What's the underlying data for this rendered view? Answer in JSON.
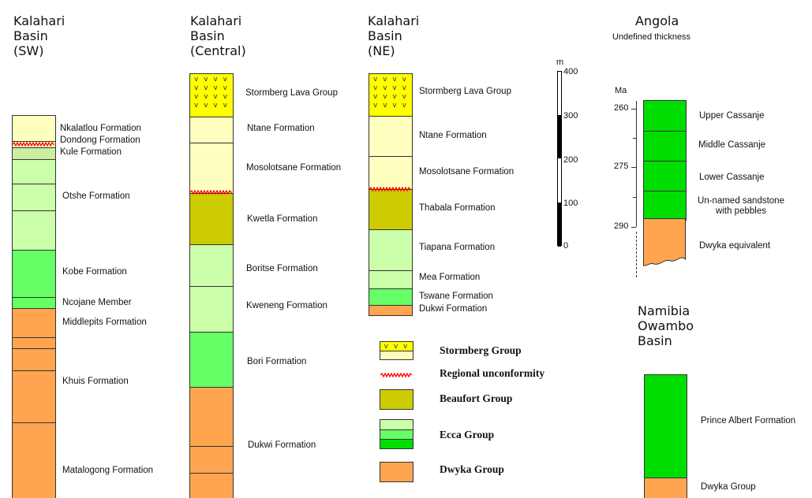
{
  "columns": {
    "sw": {
      "title": [
        "Kalahari",
        "Basin",
        "(SW)"
      ],
      "formations": [
        "Nkalatlou Formation",
        "Dondong Formation",
        "Kule Formation",
        "Otshe Formation",
        "Kobe Formation",
        "Ncojane Member",
        "Middlepits Formation",
        "Khuis Formation",
        "Matalogong Formation"
      ]
    },
    "central": {
      "title": [
        "Kalahari",
        "Basin",
        "(Central)"
      ],
      "formations": [
        "Stormberg Lava Group",
        "Ntane Formation",
        "Mosolotsane Formation",
        "Kwetla Formation",
        "Boritse Formation",
        "Kweneng Formation",
        "Bori Formation",
        "Dukwi Formation"
      ]
    },
    "ne": {
      "title": [
        "Kalahari",
        "Basin",
        "(NE)"
      ],
      "formations": [
        "Stormberg Lava Group",
        "Ntane Formation",
        "Mosolotsane Formation",
        "Thabala Formation",
        "Tiapana Formation",
        "Mea Formation",
        "Tswane Formation",
        "Dukwi Formation"
      ]
    },
    "angola": {
      "title": "Angola",
      "subtitle": "Undefined thickness",
      "axis_label": "Ma",
      "ticks": [
        "260",
        "275",
        "290"
      ],
      "formations": [
        "Upper Cassanje",
        "Middle Cassanje",
        "Lower Cassanje",
        "Un-named sandstone",
        "with pebbles",
        "Dwyka equivalent"
      ]
    },
    "namibia": {
      "title": [
        "Namibia",
        "Owambo",
        "Basin"
      ],
      "formations": [
        "Prince Albert Formation",
        "Dwyka Group"
      ]
    }
  },
  "scale": {
    "unit": "m",
    "ticks": [
      "400",
      "300",
      "200",
      "100",
      "0"
    ]
  },
  "lava_pattern": "v v v v",
  "legend": [
    "Stormberg Group",
    "Regional unconformity",
    "Beaufort Group",
    "Ecca Group",
    "Dwyka Group"
  ],
  "colors": {
    "stormberg_lava": "#ffff00",
    "stormberg_sediment": "#ffffc0",
    "beaufort": "#cccc00",
    "ecca_light": "#ccffaa",
    "ecca_mid": "#66ff66",
    "ecca_dark": "#00dd00",
    "dwyka": "#ffa54f",
    "unconformity": "#ff0000"
  }
}
